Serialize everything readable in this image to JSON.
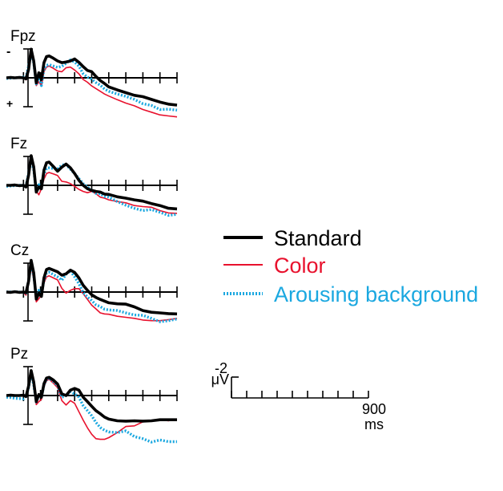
{
  "chart_data": {
    "type": "line",
    "time_unit": "ms",
    "polarity_labels": {
      "negative": "-",
      "positive": "+"
    },
    "legend": [
      {
        "key": "standard",
        "label": "Standard",
        "color": "#000000",
        "style": "solid-thick"
      },
      {
        "key": "color",
        "label": "Color",
        "color": "#e8112d",
        "style": "solid-thin"
      },
      {
        "key": "arousing",
        "label": "Arousing background",
        "color": "#1ba8e0",
        "style": "dotted"
      }
    ],
    "scale_bar": {
      "amplitude_label": "-2",
      "amplitude_unit": "μV",
      "time_label": "900",
      "time_unit": "ms",
      "amplitude": -2,
      "duration": 900
    },
    "x": [
      -100,
      -75,
      -50,
      -25,
      0,
      15,
      30,
      45,
      60,
      75,
      90,
      105,
      120,
      135,
      150,
      175,
      200,
      225,
      250,
      275,
      300,
      325,
      350,
      375,
      400,
      425,
      450,
      475,
      500,
      550,
      600,
      650,
      700,
      750,
      800,
      850,
      900
    ],
    "panels": [
      {
        "electrode": "Fpz",
        "series": [
          {
            "key": "standard",
            "values": [
              0,
              -0.1,
              0,
              -0.1,
              0,
              0.3,
              -2.5,
              -8.5,
              -5,
              1.5,
              -1.5,
              0.5,
              -4.5,
              -6.3,
              -6.5,
              -5.8,
              -5,
              -4.5,
              -4.7,
              -5,
              -5.6,
              -4.6,
              -3.3,
              -2.2,
              -1.8,
              -0.4,
              0.8,
              1.7,
              2.7,
              3.6,
              4.4,
              5.2,
              5.6,
              6.4,
              7.2,
              7.8,
              8.1
            ]
          },
          {
            "key": "color",
            "values": [
              0,
              0,
              0.1,
              0,
              0,
              0.6,
              -2,
              -7.2,
              -4.8,
              2.3,
              1.2,
              2.3,
              -1.8,
              -3.2,
              -3.5,
              -2.8,
              -2,
              -1.8,
              -3,
              -3.2,
              -2.3,
              -1.2,
              0.5,
              1.3,
              2.4,
              3.2,
              4,
              4.8,
              5.4,
              6.5,
              7.5,
              8.3,
              9.4,
              10.2,
              11,
              11.3,
              11.6
            ]
          },
          {
            "key": "arousing",
            "values": [
              0.2,
              0.1,
              0,
              -0.1,
              -0.2,
              -0.2,
              -3.5,
              -7.6,
              -4.5,
              1.8,
              -0.3,
              2.3,
              -2.6,
              -3.7,
              -3.9,
              -3.5,
              -3.1,
              -3.4,
              -4.3,
              -5.3,
              -4.7,
              -3.5,
              -1.2,
              -0.2,
              0.4,
              1.4,
              2.2,
              3.3,
              4,
              4.8,
              5.5,
              6.4,
              7.7,
              8.2,
              9.4,
              9.3,
              9.6
            ]
          }
        ]
      },
      {
        "electrode": "Fz",
        "series": [
          {
            "key": "standard",
            "values": [
              0,
              0,
              -0.1,
              0.1,
              0,
              0.5,
              -3,
              -8.8,
              -5.5,
              2,
              0.5,
              1,
              -4.5,
              -6.7,
              -6.9,
              -5.6,
              -4.2,
              -5.4,
              -6.3,
              -5.2,
              -3.5,
              -1.5,
              0,
              1,
              1.5,
              1.8,
              2,
              2.6,
              2.7,
              3.4,
              3.8,
              4.3,
              4.7,
              5.4,
              6,
              6.8,
              7
            ]
          },
          {
            "key": "color",
            "values": [
              0.1,
              0,
              0,
              -0.1,
              0.1,
              0.7,
              -3,
              -8.3,
              -4.6,
              1.7,
              2.8,
              1,
              -1.8,
              -3.5,
              -3.8,
              -3.4,
              -2.9,
              -1.2,
              -1,
              -0.5,
              0.3,
              1.2,
              1.8,
              2.2,
              1.8,
              2.5,
              3.5,
              3.8,
              4.3,
              4.8,
              5.2,
              6,
              6.3,
              6.5,
              7.5,
              8.2,
              8.3
            ]
          },
          {
            "key": "arousing",
            "values": [
              0.3,
              0.2,
              0.1,
              0,
              0,
              0.2,
              -3.6,
              -7.8,
              -4.6,
              1.8,
              -0.2,
              0.6,
              -3.5,
              -5,
              -5.2,
              -5,
              -4.8,
              -6,
              -6.2,
              -4.8,
              -3.5,
              -2,
              -0.5,
              0.5,
              1.5,
              2.4,
              2.5,
              3.3,
              3.5,
              4.8,
              5.9,
              6.8,
              7.5,
              7.2,
              8,
              8.9,
              8.6
            ]
          }
        ]
      },
      {
        "electrode": "Cz",
        "series": [
          {
            "key": "standard",
            "values": [
              0,
              0.1,
              -0.1,
              0.1,
              0,
              0.2,
              -3.2,
              -9.4,
              -5.7,
              2.1,
              0.4,
              1.3,
              -4.2,
              -6.7,
              -7,
              -6.5,
              -6,
              -5,
              -5.4,
              -6.5,
              -5.8,
              -4.2,
              -2,
              -0.5,
              0.8,
              1.6,
              2.2,
              2.7,
              3.2,
              3.5,
              3.6,
              4.4,
              5.5,
              6,
              6.2,
              6.4,
              6.5
            ]
          },
          {
            "key": "color",
            "values": [
              0.3,
              0.2,
              0.1,
              0,
              0.1,
              0.9,
              -2.5,
              -8.2,
              -3.5,
              2.9,
              2,
              0.9,
              -2.7,
              -4.5,
              -4.8,
              -4.2,
              -3.6,
              -1.1,
              0.3,
              -0.5,
              -1,
              -1,
              0.5,
              2.2,
              3.9,
              5,
              6.2,
              6.5,
              6.6,
              7.2,
              7.5,
              7.8,
              8.3,
              8.5,
              8.5,
              8.2,
              7.8
            ]
          },
          {
            "key": "arousing",
            "values": [
              0,
              0,
              -0.1,
              0,
              0.1,
              0.3,
              -3.3,
              -8.7,
              -4.8,
              1.7,
              -0.5,
              0.6,
              -3.5,
              -5.6,
              -5.9,
              -5.2,
              -4.5,
              -3.5,
              -5.3,
              -6.3,
              -4.5,
              -2.5,
              0.2,
              1.5,
              2.5,
              3.8,
              4.3,
              5.1,
              5.3,
              5.5,
              6.2,
              6.8,
              6.9,
              7.8,
              8.8,
              8.5,
              8
            ]
          }
        ]
      },
      {
        "electrode": "Pz",
        "series": [
          {
            "key": "standard",
            "values": [
              0,
              -0.1,
              0,
              0,
              -0.1,
              0.3,
              -2.8,
              -7.4,
              -4,
              1.8,
              -0.3,
              0.5,
              -3.5,
              -5.2,
              -5.4,
              -4.6,
              -3.4,
              -0.5,
              0,
              -1.6,
              -2.1,
              -1.6,
              0.5,
              1.8,
              3.2,
              4.5,
              5.4,
              6.4,
              7,
              7.5,
              7.6,
              7.5,
              7.6,
              7.5,
              7.2,
              7.2,
              7.2
            ]
          },
          {
            "key": "color",
            "values": [
              0,
              0,
              0.1,
              0.2,
              -0.1,
              0.5,
              -2,
              -7,
              -3.6,
              2.7,
              1.8,
              1.2,
              -2.6,
              -4.4,
              -4.8,
              -3.7,
              -2.3,
              1.5,
              2.8,
              1.5,
              2.3,
              4.8,
              7.3,
              9.6,
              11.5,
              12.8,
              13,
              13,
              12.5,
              11,
              9.2,
              9,
              7.8,
              7.6,
              7.2,
              7.5,
              7
            ]
          },
          {
            "key": "arousing",
            "values": [
              0.5,
              0.6,
              0.8,
              0.9,
              1,
              0.2,
              -2.3,
              -6.8,
              -3.2,
              1.9,
              -0.1,
              0.6,
              -3.2,
              -4.8,
              -5.2,
              -4.2,
              -3,
              0.5,
              0,
              -1.2,
              -0.5,
              0.5,
              3,
              4.5,
              6,
              8,
              9.5,
              10.3,
              10.8,
              11,
              10.5,
              12.2,
              12.8,
              13.8,
              13.2,
              13.7,
              13.7
            ]
          }
        ]
      }
    ]
  }
}
